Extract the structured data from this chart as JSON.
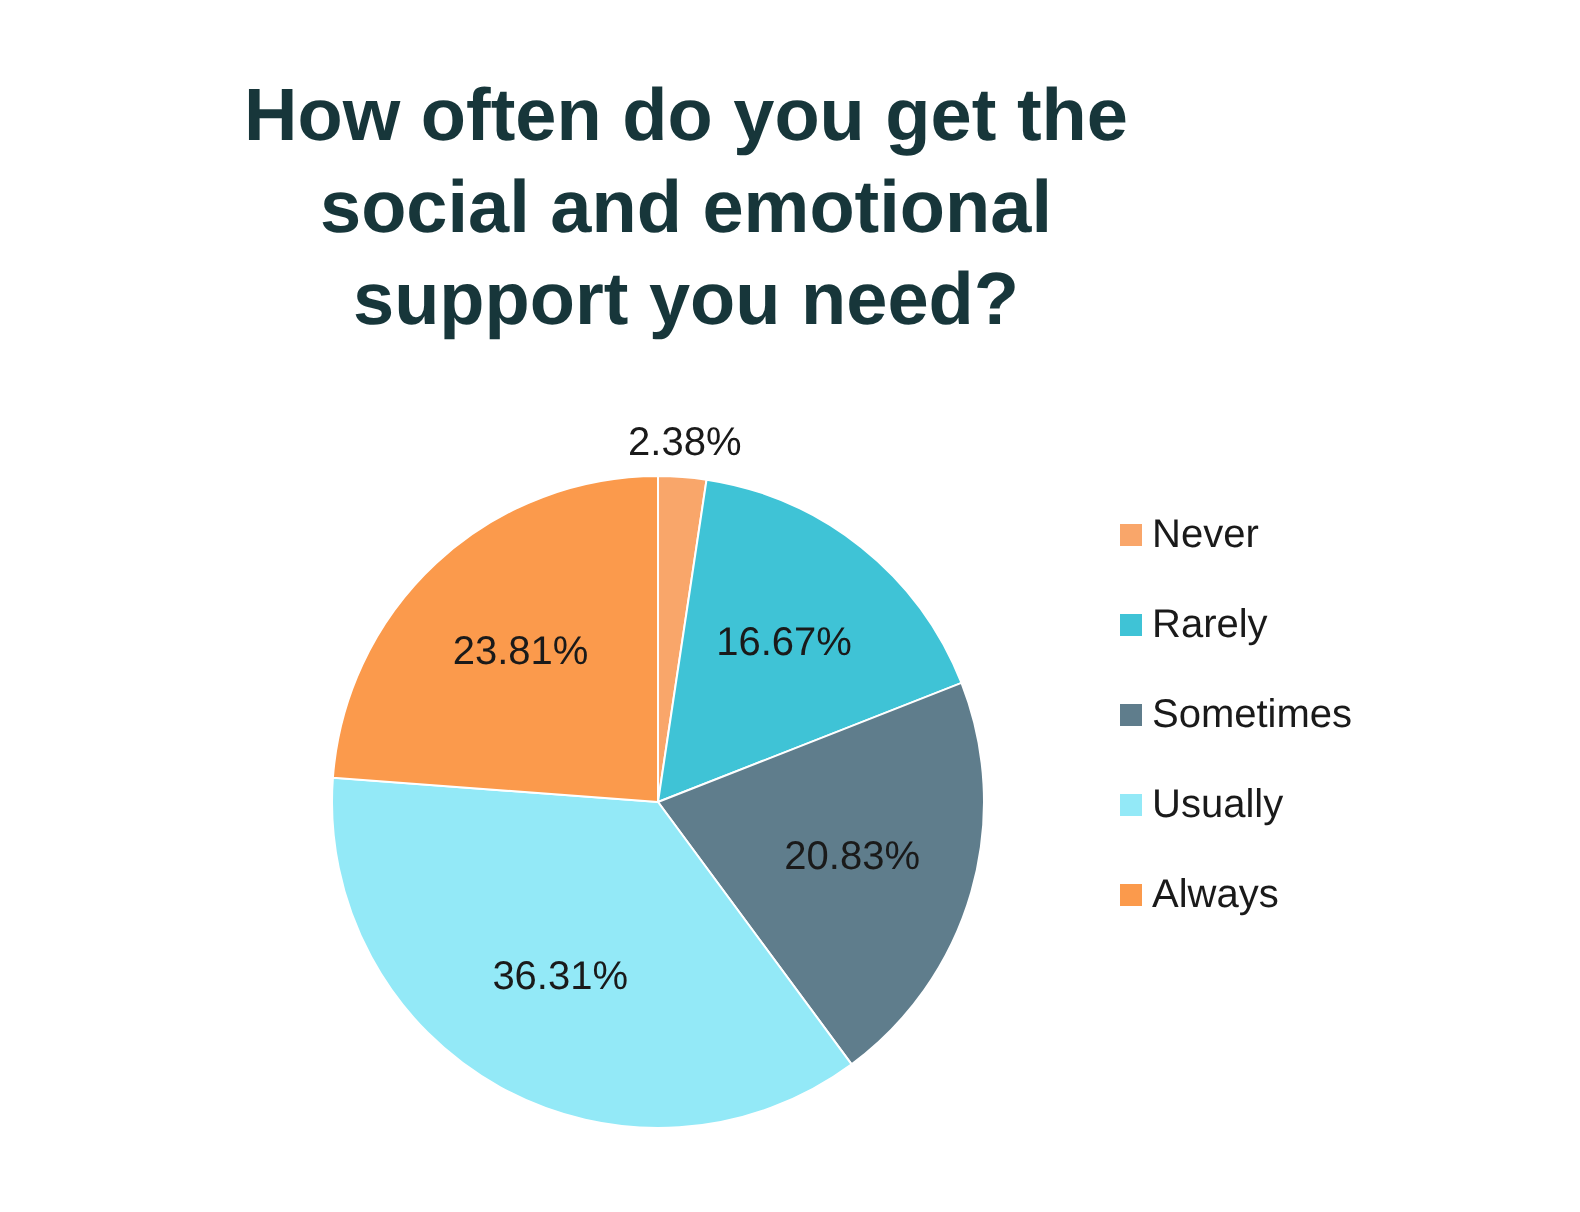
{
  "chart_data": {
    "type": "pie",
    "title": "How often do you get the social and emotional support you need?",
    "categories": [
      "Never",
      "Rarely",
      "Sometimes",
      "Usually",
      "Always"
    ],
    "values": [
      2.38,
      16.67,
      20.83,
      36.31,
      23.81
    ],
    "value_labels": [
      "2.38%",
      "16.67%",
      "20.83%",
      "36.31%",
      "23.81%"
    ],
    "colors": [
      "#f9a66a",
      "#3fc3d6",
      "#5f7d8c",
      "#93e9f7",
      "#fb9a4c"
    ],
    "legend": "right"
  }
}
